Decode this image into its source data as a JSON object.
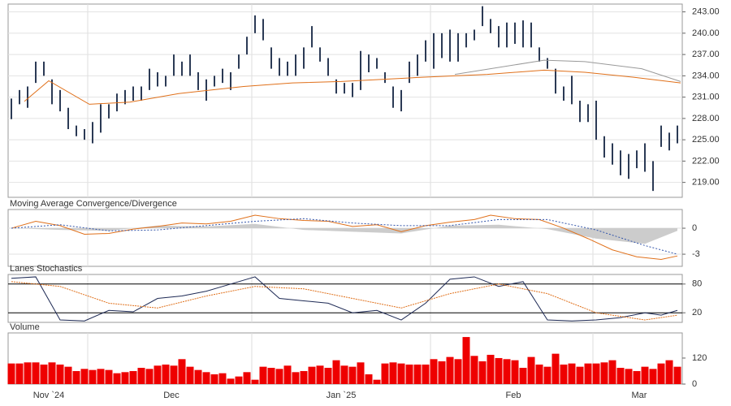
{
  "chart_data": [
    {
      "type": "ohlc",
      "color": "#2b3a55",
      "grid": true,
      "xlim": [
        -0.4,
        82.6
      ],
      "ylim": [
        216.9,
        244.1
      ],
      "yticks": [
        {
          "value": 243,
          "label": "243.00"
        },
        {
          "value": 240,
          "label": "240.00"
        },
        {
          "value": 237,
          "label": "237.00"
        },
        {
          "value": 234,
          "label": "234.00"
        },
        {
          "value": 231,
          "label": "231.00"
        },
        {
          "value": 228,
          "label": "228.00"
        },
        {
          "value": 225,
          "label": "225.00"
        },
        {
          "value": 222,
          "label": "222.00"
        },
        {
          "value": 219,
          "label": "219.00"
        }
      ],
      "xticks": [
        {
          "value": 4.6,
          "label": "Nov `24"
        },
        {
          "value": 19.7,
          "label": "Dec"
        },
        {
          "value": 40.6,
          "label": "Jan `25"
        },
        {
          "value": 61.8,
          "label": "Feb"
        },
        {
          "value": 77.3,
          "label": "Mar"
        }
      ],
      "xgrid": [
        9.4,
        29.6,
        51.6,
        71.6
      ],
      "high": [
        230.8,
        232,
        232.5,
        236,
        236,
        233.5,
        232,
        229.5,
        227,
        226.5,
        227.5,
        230,
        230,
        231.5,
        232,
        232.5,
        232.5,
        235,
        234.5,
        234,
        237,
        236,
        237,
        234.5,
        233.5,
        234,
        235,
        234.5,
        237,
        239.5,
        242.5,
        242,
        238,
        236.5,
        236,
        237,
        238,
        241,
        238,
        236.5,
        233.5,
        233,
        233,
        237.5,
        237,
        236.5,
        234.5,
        232.5,
        232,
        236,
        237,
        239,
        240,
        240,
        240.5,
        240,
        240,
        240.5,
        243.8,
        242,
        241,
        241.5,
        241.5,
        241.8,
        241.5,
        238,
        236.5,
        235,
        232.5,
        234,
        230.5,
        230,
        230.5,
        225.5,
        224.5,
        223.5,
        223,
        223.5,
        224.5,
        222,
        227,
        226,
        227
      ],
      "low": [
        227.9,
        230,
        229.5,
        233,
        234,
        230,
        229,
        226.5,
        225.5,
        225,
        224.5,
        226,
        228,
        229,
        230,
        230.5,
        230.5,
        232,
        232.5,
        232.5,
        234,
        234,
        234,
        232,
        230.5,
        232.5,
        233,
        232,
        235,
        237,
        240,
        239,
        235,
        234,
        234,
        234,
        235,
        238,
        236,
        234,
        231.5,
        231.5,
        231,
        232,
        234.5,
        235,
        233,
        229.5,
        229,
        233,
        234,
        236,
        235,
        236.5,
        236,
        236,
        238,
        239,
        241,
        240,
        238,
        238,
        238.5,
        238,
        238,
        236,
        235,
        231.5,
        230.5,
        230,
        227.5,
        227.5,
        225,
        222.5,
        221.5,
        220,
        219.5,
        221,
        220.5,
        217.8,
        224,
        223.5,
        224.5
      ],
      "lines": [
        {
          "color": "#e0701a",
          "x": [
            1.6,
            4.6,
            9.6,
            14.6,
            20.6,
            28.6,
            34.6,
            40.6,
            50.6,
            58.6,
            65.6,
            70.6,
            76.6,
            82.4
          ],
          "values": [
            230.4,
            233.3,
            230,
            230.3,
            231.5,
            232.5,
            233,
            233.2,
            233.8,
            234.2,
            234.8,
            234.5,
            233.8,
            233
          ]
        },
        {
          "color": "#999999",
          "x": [
            54.6,
            65.6,
            70.6,
            77.6,
            82.4
          ],
          "values": [
            234.2,
            236.2,
            236,
            235,
            233.2
          ]
        }
      ]
    },
    {
      "type": "macd",
      "title": "Moving Average Convergence/Divergence",
      "xlim": [
        -0.4,
        82.6
      ],
      "ylim": [
        -4.4,
        2.16
      ],
      "yticks": [
        0,
        -3
      ],
      "series": [
        {
          "color": "#e0701a",
          "x": [
            0,
            3,
            6,
            9,
            12,
            15,
            18,
            21,
            24,
            27,
            30,
            33,
            36,
            39,
            42,
            45,
            48,
            51,
            54,
            57,
            59,
            62,
            65,
            68,
            71,
            74,
            77,
            80,
            82
          ],
          "values": [
            0,
            0.8,
            0.3,
            -0.7,
            -0.6,
            -0.1,
            0.2,
            0.6,
            0.5,
            0.8,
            1.5,
            1.1,
            0.9,
            0.8,
            0.2,
            0.4,
            -0.4,
            0.3,
            0.7,
            1.0,
            1.5,
            1.1,
            1.0,
            0,
            -1.2,
            -2.5,
            -3.3,
            -3.6,
            -3.2
          ]
        },
        {
          "color": "#3355aa",
          "x": [
            0,
            6,
            12,
            18,
            24,
            30,
            36,
            42,
            48,
            54,
            60,
            66,
            72,
            78,
            82
          ],
          "values": [
            0,
            0.4,
            -0.3,
            -0.2,
            0.3,
            0.8,
            1.1,
            0.6,
            0.3,
            0.3,
            1.0,
            1.0,
            -0.2,
            -2.0,
            -3.0
          ]
        }
      ],
      "histogram": {
        "color": "#cccccc",
        "x": [
          0,
          6,
          12,
          18,
          24,
          30,
          36,
          42,
          48,
          54,
          60,
          66,
          72,
          78,
          82
        ],
        "values": [
          0,
          -0.2,
          -0.3,
          0.3,
          0.2,
          0.5,
          -0.2,
          -0.4,
          -0.6,
          0.3,
          0.4,
          -0.1,
          -1.2,
          -1.8,
          -0.3
        ]
      }
    },
    {
      "type": "line",
      "title": "Lanes Stochastics",
      "xlim": [
        -0.4,
        82.6
      ],
      "ylim": [
        0,
        100
      ],
      "yticks": [
        80,
        20
      ],
      "series": [
        {
          "color": "#1e2a55",
          "x": [
            0,
            3,
            6,
            9,
            12,
            15,
            18,
            21,
            24,
            27,
            30,
            33,
            36,
            39,
            42,
            45,
            48,
            51,
            54,
            57,
            60,
            63,
            66,
            69,
            72,
            75,
            78,
            80,
            82
          ],
          "values": [
            92,
            95,
            5,
            3,
            25,
            22,
            50,
            55,
            65,
            80,
            95,
            50,
            45,
            40,
            20,
            25,
            5,
            40,
            90,
            95,
            75,
            85,
            5,
            3,
            5,
            10,
            20,
            15,
            25
          ]
        },
        {
          "color": "#e0701a",
          "x": [
            0,
            6,
            12,
            18,
            24,
            30,
            36,
            42,
            48,
            54,
            60,
            66,
            72,
            78,
            82
          ],
          "values": [
            85,
            75,
            40,
            30,
            55,
            75,
            70,
            50,
            30,
            60,
            80,
            60,
            20,
            5,
            15
          ]
        }
      ]
    },
    {
      "type": "bar",
      "title": "Volume",
      "color": "#ee0000",
      "xlim": [
        -0.4,
        82.6
      ],
      "ylim": [
        0,
        236
      ],
      "yticks": [
        120,
        0
      ],
      "values": [
        95,
        95,
        100,
        100,
        90,
        100,
        90,
        80,
        60,
        70,
        65,
        70,
        65,
        50,
        55,
        60,
        75,
        70,
        85,
        90,
        85,
        115,
        80,
        65,
        55,
        45,
        50,
        25,
        35,
        55,
        20,
        80,
        75,
        70,
        85,
        55,
        60,
        80,
        85,
        75,
        110,
        85,
        80,
        100,
        45,
        20,
        95,
        100,
        95,
        90,
        90,
        90,
        115,
        105,
        125,
        115,
        217,
        130,
        105,
        135,
        120,
        115,
        110,
        75,
        125,
        90,
        80,
        140,
        90,
        95,
        80,
        95,
        95,
        100,
        110,
        75,
        70,
        60,
        80,
        70,
        95,
        110,
        80
      ]
    }
  ]
}
